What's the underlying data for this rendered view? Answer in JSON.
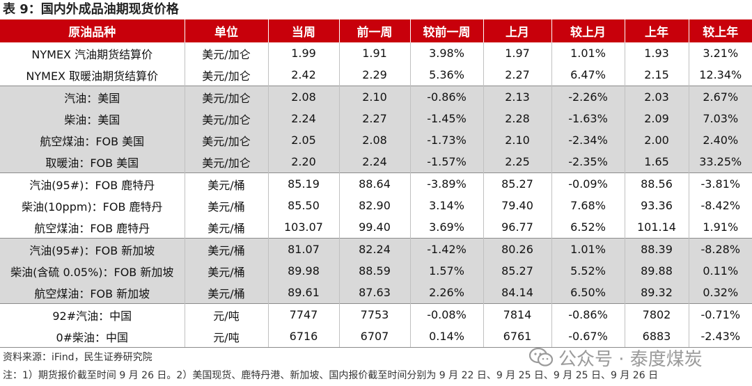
{
  "title": "表 9：国内外成品油期现货价格",
  "headers": [
    "原油品种",
    "单位",
    "当周",
    "前一周",
    "较前一周",
    "上月",
    "较上月",
    "上年",
    "较上年"
  ],
  "rows": [
    {
      "name": "NYMEX 汽油期货结算价",
      "unit": "美元/加仑",
      "cur": "1.99",
      "prev_week": "1.91",
      "chg_week": "3.98%",
      "last_month": "1.97",
      "chg_month": "1.01%",
      "last_year": "1.93",
      "chg_year": "3.21%"
    },
    {
      "name": "NYMEX 取暖油期货结算价",
      "unit": "美元/加仑",
      "cur": "2.42",
      "prev_week": "2.29",
      "chg_week": "5.36%",
      "last_month": "2.27",
      "chg_month": "6.47%",
      "last_year": "2.15",
      "chg_year": "12.34%"
    },
    {
      "name": "汽油：美国",
      "unit": "美元/加仑",
      "cur": "2.08",
      "prev_week": "2.10",
      "chg_week": "-0.86%",
      "last_month": "2.13",
      "chg_month": "-2.26%",
      "last_year": "2.03",
      "chg_year": "2.67%"
    },
    {
      "name": "柴油：美国",
      "unit": "美元/加仑",
      "cur": "2.24",
      "prev_week": "2.27",
      "chg_week": "-1.45%",
      "last_month": "2.28",
      "chg_month": "-1.63%",
      "last_year": "2.09",
      "chg_year": "7.03%"
    },
    {
      "name": "航空煤油：FOB 美国",
      "unit": "美元/加仑",
      "cur": "2.05",
      "prev_week": "2.08",
      "chg_week": "-1.73%",
      "last_month": "2.10",
      "chg_month": "-2.34%",
      "last_year": "2.00",
      "chg_year": "2.40%"
    },
    {
      "name": "取暖油：FOB 美国",
      "unit": "美元/加仑",
      "cur": "2.20",
      "prev_week": "2.24",
      "chg_week": "-1.57%",
      "last_month": "2.25",
      "chg_month": "-2.35%",
      "last_year": "1.65",
      "chg_year": "33.25%"
    },
    {
      "name": "汽油(95#)：FOB 鹿特丹",
      "unit": "美元/桶",
      "cur": "85.19",
      "prev_week": "88.64",
      "chg_week": "-3.89%",
      "last_month": "85.27",
      "chg_month": "-0.09%",
      "last_year": "88.56",
      "chg_year": "-3.81%"
    },
    {
      "name": "柴油(10ppm)：FOB 鹿特丹",
      "unit": "美元/桶",
      "cur": "85.50",
      "prev_week": "82.90",
      "chg_week": "3.14%",
      "last_month": "79.40",
      "chg_month": "7.68%",
      "last_year": "93.36",
      "chg_year": "-8.42%"
    },
    {
      "name": "航空煤油：FOB 鹿特丹",
      "unit": "美元/桶",
      "cur": "103.07",
      "prev_week": "99.40",
      "chg_week": "3.69%",
      "last_month": "96.77",
      "chg_month": "6.52%",
      "last_year": "101.14",
      "chg_year": "1.91%"
    },
    {
      "name": "汽油(95#)：FOB 新加坡",
      "unit": "美元/桶",
      "cur": "81.07",
      "prev_week": "82.24",
      "chg_week": "-1.42%",
      "last_month": "80.26",
      "chg_month": "1.01%",
      "last_year": "88.39",
      "chg_year": "-8.28%"
    },
    {
      "name": "柴油(含硫 0.05%)：FOB 新加坡",
      "unit": "美元/桶",
      "cur": "89.98",
      "prev_week": "88.59",
      "chg_week": "1.57%",
      "last_month": "85.27",
      "chg_month": "5.52%",
      "last_year": "89.88",
      "chg_year": "0.11%"
    },
    {
      "name": "航空煤油：FOB 新加坡",
      "unit": "美元/桶",
      "cur": "89.61",
      "prev_week": "87.63",
      "chg_week": "2.26%",
      "last_month": "84.14",
      "chg_month": "6.50%",
      "last_year": "89.32",
      "chg_year": "0.32%"
    },
    {
      "name": "92#汽油：中国",
      "unit": "元/吨",
      "cur": "7747",
      "prev_week": "7753",
      "chg_week": "-0.08%",
      "last_month": "7814",
      "chg_month": "-0.86%",
      "last_year": "7802",
      "chg_year": "-0.71%"
    },
    {
      "name": "0#柴油：中国",
      "unit": "元/吨",
      "cur": "6716",
      "prev_week": "6707",
      "chg_week": "0.14%",
      "last_month": "6761",
      "chg_month": "-0.67%",
      "last_year": "6883",
      "chg_year": "-2.43%"
    }
  ],
  "source": "资料来源：iFind，民生证券研究院",
  "note": "注：1）期货报价截至时间 9 月 26 日。2）美国现货、鹿特丹港、新加坡、国内报价截至时间分别为 9 月 22 日、9 月 25 日、9 月 25 日、9 月 26 日",
  "watermark": "公众号 · 泰度煤炭",
  "colors": {
    "header_bg": "#c8000b",
    "positive": "#d40000",
    "negative": "#007a1c",
    "shaded_row": "#d9d9d9"
  }
}
